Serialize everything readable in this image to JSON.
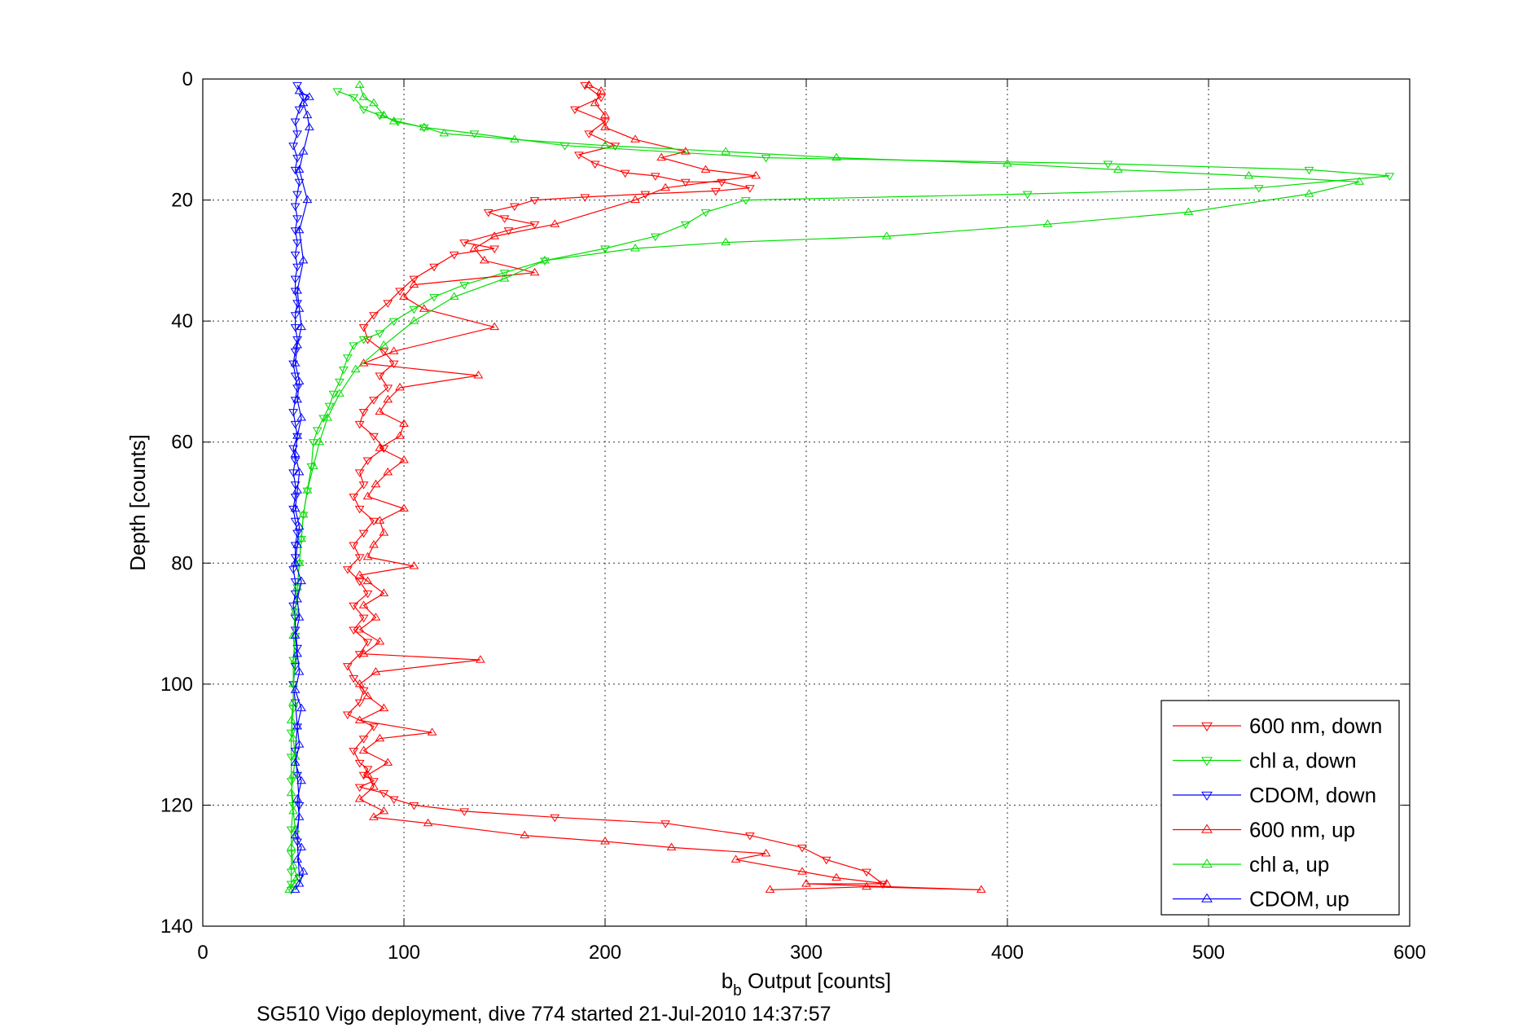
{
  "chart_data": {
    "type": "line",
    "xlabel_main": "b",
    "xlabel_sub": "b",
    "xlabel_rest": " Output [counts]",
    "ylabel": "Depth [counts]",
    "caption": "SG510 Vigo deployment, dive 774 started 21-Jul-2010 14:37:57",
    "xlim": [
      0,
      600
    ],
    "ylim": [
      0,
      140
    ],
    "y_reversed": true,
    "grid": true,
    "legend_position": "bottom-right",
    "xticks": [
      "0",
      "100",
      "200",
      "300",
      "400",
      "500",
      "600"
    ],
    "yticks": [
      "0",
      "20",
      "40",
      "60",
      "80",
      "100",
      "120",
      "140"
    ],
    "series": [
      {
        "name": "600 nm, down",
        "color": "#ff0000",
        "marker": "triangle-down",
        "x": [
          190,
          198,
          185,
          200,
          192,
          205,
          187,
          195,
          210,
          225,
          240,
          258,
          272,
          255,
          220,
          190,
          165,
          155,
          142,
          150,
          165,
          152,
          130,
          145,
          125,
          115,
          105,
          98,
          92,
          85,
          80,
          82,
          90,
          95,
          88,
          92,
          85,
          80,
          78,
          85,
          90,
          82,
          78,
          80,
          75,
          78,
          85,
          80,
          75,
          78,
          72,
          78,
          82,
          75,
          80,
          75,
          82,
          78,
          72,
          75,
          80,
          78,
          72,
          85,
          80,
          75,
          78,
          82,
          80,
          85,
          78,
          90,
          95,
          105,
          130,
          175,
          230,
          272,
          298,
          310,
          330,
          338
        ],
        "y": [
          1,
          3,
          5,
          7,
          9,
          11,
          12.5,
          14,
          15.5,
          16,
          17,
          17,
          18,
          18.5,
          19,
          19.5,
          20,
          21,
          22,
          23,
          24,
          25,
          27,
          28,
          29,
          31,
          33,
          35,
          37,
          39,
          41,
          43,
          45,
          47,
          49,
          51,
          53,
          55,
          57,
          59,
          61,
          63,
          65,
          67,
          69,
          71,
          73,
          75,
          77,
          79,
          81,
          83,
          85,
          87,
          89,
          91,
          93,
          95,
          97,
          99,
          101,
          103,
          105,
          107,
          109,
          111,
          113,
          114,
          115,
          116,
          117,
          118,
          119,
          120,
          121,
          122,
          123,
          125,
          127,
          129,
          131,
          133
        ]
      },
      {
        "name": "chl a, down",
        "color": "#00dd00",
        "marker": "triangle-down",
        "x": [
          67,
          75,
          80,
          88,
          97,
          110,
          135,
          180,
          280,
          450,
          550,
          590,
          525,
          410,
          270,
          250,
          240,
          225,
          200,
          170,
          150,
          130,
          115,
          105,
          95,
          88,
          80,
          75,
          72,
          70,
          68,
          65,
          63,
          60,
          57,
          55,
          54,
          52,
          50,
          49,
          48,
          47,
          46,
          46,
          45,
          45,
          45,
          44,
          44,
          44,
          45,
          44,
          44,
          44,
          44,
          44
        ],
        "y": [
          2,
          3,
          5,
          6,
          7,
          8,
          9,
          11,
          13,
          14,
          15,
          16,
          18,
          19,
          20,
          22,
          24,
          26,
          28,
          30,
          32,
          34,
          36,
          38,
          40,
          42,
          43,
          44,
          46,
          48,
          50,
          52,
          54,
          56,
          58,
          60,
          64,
          68,
          72,
          76,
          80,
          84,
          88,
          92,
          96,
          100,
          104,
          108,
          112,
          116,
          120,
          124,
          128,
          131,
          133,
          134
        ]
      },
      {
        "name": "CDOM, down",
        "color": "#0000ff",
        "marker": "triangle-down",
        "x": [
          47,
          50,
          48,
          46,
          47,
          45,
          47,
          46,
          48,
          47,
          46,
          47,
          46,
          47,
          46,
          47,
          46,
          46,
          47,
          46,
          46,
          47,
          46,
          45,
          46,
          47,
          46,
          45,
          46,
          47,
          45,
          46,
          45,
          46,
          46,
          45,
          46,
          47,
          46,
          46,
          45,
          46,
          46,
          45,
          46,
          46,
          47,
          46,
          45,
          46,
          47,
          46,
          47,
          48,
          47,
          48
        ],
        "y": [
          1,
          3,
          5,
          7,
          9,
          11,
          13,
          15,
          17,
          19,
          21,
          23,
          25,
          27,
          29,
          31,
          33,
          35,
          37,
          39,
          41,
          43,
          45,
          47,
          49,
          51,
          53,
          55,
          57,
          59,
          61,
          63,
          65,
          67,
          69,
          71,
          73,
          75,
          77,
          79,
          81,
          83,
          85,
          87,
          89,
          91,
          94,
          97,
          100,
          103,
          107,
          111,
          115,
          120,
          126,
          132
        ]
      },
      {
        "name": "600 nm, up",
        "color": "#ff0000",
        "marker": "triangle-up",
        "x": [
          282,
          330,
          387,
          300,
          340,
          315,
          298,
          265,
          280,
          233,
          200,
          160,
          112,
          85,
          90,
          78,
          85,
          82,
          92,
          80,
          88,
          114,
          78,
          90,
          82,
          78,
          86,
          138,
          80,
          88,
          78,
          86,
          80,
          90,
          82,
          78,
          105,
          82,
          85,
          90,
          88,
          100,
          82,
          86,
          92,
          100,
          88,
          98,
          100,
          88,
          92,
          98,
          137,
          80,
          95,
          145,
          110,
          100,
          105,
          165,
          140,
          135,
          145,
          175,
          215,
          230,
          275,
          250,
          228,
          240,
          215,
          200,
          200,
          195,
          198,
          192
        ],
        "y": [
          134,
          133.5,
          134,
          133,
          133,
          132,
          131,
          129,
          128,
          127,
          126,
          125,
          123,
          122,
          121,
          119,
          117,
          115,
          113,
          111,
          109,
          108,
          106,
          104,
          102,
          100,
          98,
          96,
          95,
          93,
          91,
          89,
          87,
          85,
          83,
          82,
          80.5,
          79,
          77,
          75,
          73,
          71,
          69,
          67,
          65,
          63,
          61,
          59,
          57,
          55,
          53,
          51,
          49,
          47,
          45,
          41,
          38,
          36,
          34,
          32,
          30,
          28,
          26,
          24,
          20,
          18,
          16,
          15,
          13,
          12,
          10,
          8,
          6,
          4,
          2,
          1
        ]
      },
      {
        "name": "chl a, up",
        "color": "#00dd00",
        "marker": "triangle-up",
        "x": [
          43,
          45,
          47,
          45,
          44,
          46,
          45,
          44,
          45,
          46,
          45,
          44,
          45,
          45,
          46,
          45,
          46,
          47,
          48,
          49,
          50,
          52,
          55,
          58,
          62,
          68,
          76,
          90,
          105,
          125,
          150,
          170,
          215,
          260,
          340,
          420,
          490,
          550,
          575,
          520,
          455,
          400,
          315,
          260,
          200,
          155,
          120,
          110,
          95,
          90,
          85,
          80,
          78
        ],
        "y": [
          134,
          133,
          132,
          130,
          127,
          124,
          121,
          118,
          115,
          112,
          109,
          106,
          103,
          100,
          96,
          92,
          88,
          84,
          80,
          76,
          72,
          68,
          64,
          60,
          56,
          52,
          48,
          44,
          40,
          36,
          33,
          30,
          28,
          27,
          26,
          24,
          22,
          19,
          17,
          16,
          15,
          14,
          13,
          12,
          11,
          10,
          9,
          8,
          7,
          6,
          4,
          3,
          1
        ]
      },
      {
        "name": "CDOM, up",
        "color": "#0000ff",
        "marker": "triangle-up",
        "x": [
          46,
          48,
          50,
          47,
          49,
          46,
          48,
          47,
          49,
          46,
          48,
          47,
          49,
          46,
          48,
          47,
          46,
          48,
          47,
          49,
          46,
          47,
          48,
          46,
          47,
          48,
          46,
          47,
          49,
          47,
          48,
          46,
          47,
          49,
          48,
          47,
          50,
          48,
          52,
          48,
          50,
          53,
          52,
          50,
          53,
          48
        ],
        "y": [
          134,
          133,
          131,
          129,
          127,
          125,
          122,
          119,
          116,
          113,
          110,
          107,
          104,
          101,
          98,
          95,
          92,
          89,
          86,
          83,
          80,
          77,
          74,
          71,
          68,
          65,
          62,
          59,
          56,
          53,
          50,
          47,
          44,
          41,
          38,
          35,
          30,
          25,
          20,
          15,
          12,
          8,
          6,
          4,
          3,
          2
        ]
      }
    ]
  }
}
